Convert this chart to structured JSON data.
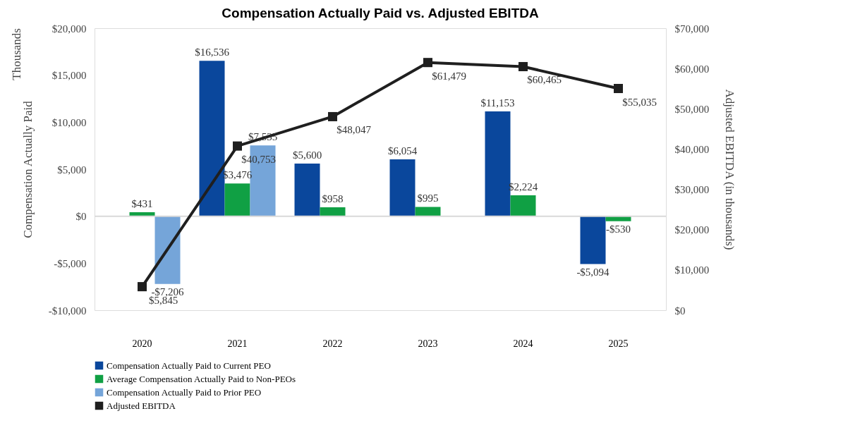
{
  "chart_data": {
    "type": "bar",
    "title": "Compensation Actually Paid vs. Adjusted EBITDA",
    "ylabel": "Compensation Actually Paid",
    "y2label": "Adjusted EBITDA (in thousands)",
    "annotations": [
      "Thousands"
    ],
    "categories": [
      "2020",
      "2021",
      "2022",
      "2023",
      "2024",
      "2025"
    ],
    "series": [
      {
        "name": "Compensation Actually Paid to Current PEO",
        "color": "#0a479c",
        "values": [
          null,
          16536,
          5600,
          6054,
          11153,
          -5094
        ],
        "value_labels": [
          null,
          "$16,536",
          "$5,600",
          "$6,054",
          "$11,153",
          "-$5,094"
        ]
      },
      {
        "name": "Average Compensation Actually Paid to Non-PEOs",
        "color": "#10a044",
        "values": [
          431,
          3476,
          958,
          995,
          2224,
          -530
        ],
        "value_labels": [
          "$431",
          "$3,476",
          "$958",
          "$995",
          "$2,224",
          "-$530"
        ]
      },
      {
        "name": "Compensation Actually Paid to Prior PEO",
        "color": "#75a5d9",
        "values": [
          -7206,
          7535,
          null,
          null,
          null,
          null
        ],
        "value_labels": [
          "-$7,206",
          "$7,535",
          null,
          null,
          null,
          null
        ]
      },
      {
        "name": "Adjusted EBITDA",
        "type": "line",
        "axis": "y2",
        "color": "#1f1f1f",
        "marker": "square",
        "values": [
          5845,
          40753,
          48047,
          61479,
          60465,
          55035
        ],
        "value_labels": [
          "$5,845",
          "$40,753",
          "$48,047",
          "$61,479",
          "$60,465",
          "$55,035"
        ]
      }
    ],
    "ylim": [
      -10000,
      20000
    ],
    "yticks": [
      {
        "value": -10000,
        "label": "-$10,000"
      },
      {
        "value": -5000,
        "label": "-$5,000"
      },
      {
        "value": 0,
        "label": "$0"
      },
      {
        "value": 5000,
        "label": "$5,000"
      },
      {
        "value": 10000,
        "label": "$10,000"
      },
      {
        "value": 15000,
        "label": "$15,000"
      },
      {
        "value": 20000,
        "label": "$20,000"
      }
    ],
    "y2lim": [
      0,
      70000
    ],
    "y2ticks": [
      {
        "value": 0,
        "label": "$0"
      },
      {
        "value": 10000,
        "label": "$10,000"
      },
      {
        "value": 20000,
        "label": "$20,000"
      },
      {
        "value": 30000,
        "label": "$30,000"
      },
      {
        "value": 40000,
        "label": "$40,000"
      },
      {
        "value": 50000,
        "label": "$50,000"
      },
      {
        "value": 60000,
        "label": "$60,000"
      },
      {
        "value": 70000,
        "label": "$70,000"
      }
    ],
    "ref_lines": [
      {
        "axis": "y",
        "value": 0,
        "color": "#d9d9d9"
      }
    ],
    "grid": false,
    "legend": "bottom"
  }
}
